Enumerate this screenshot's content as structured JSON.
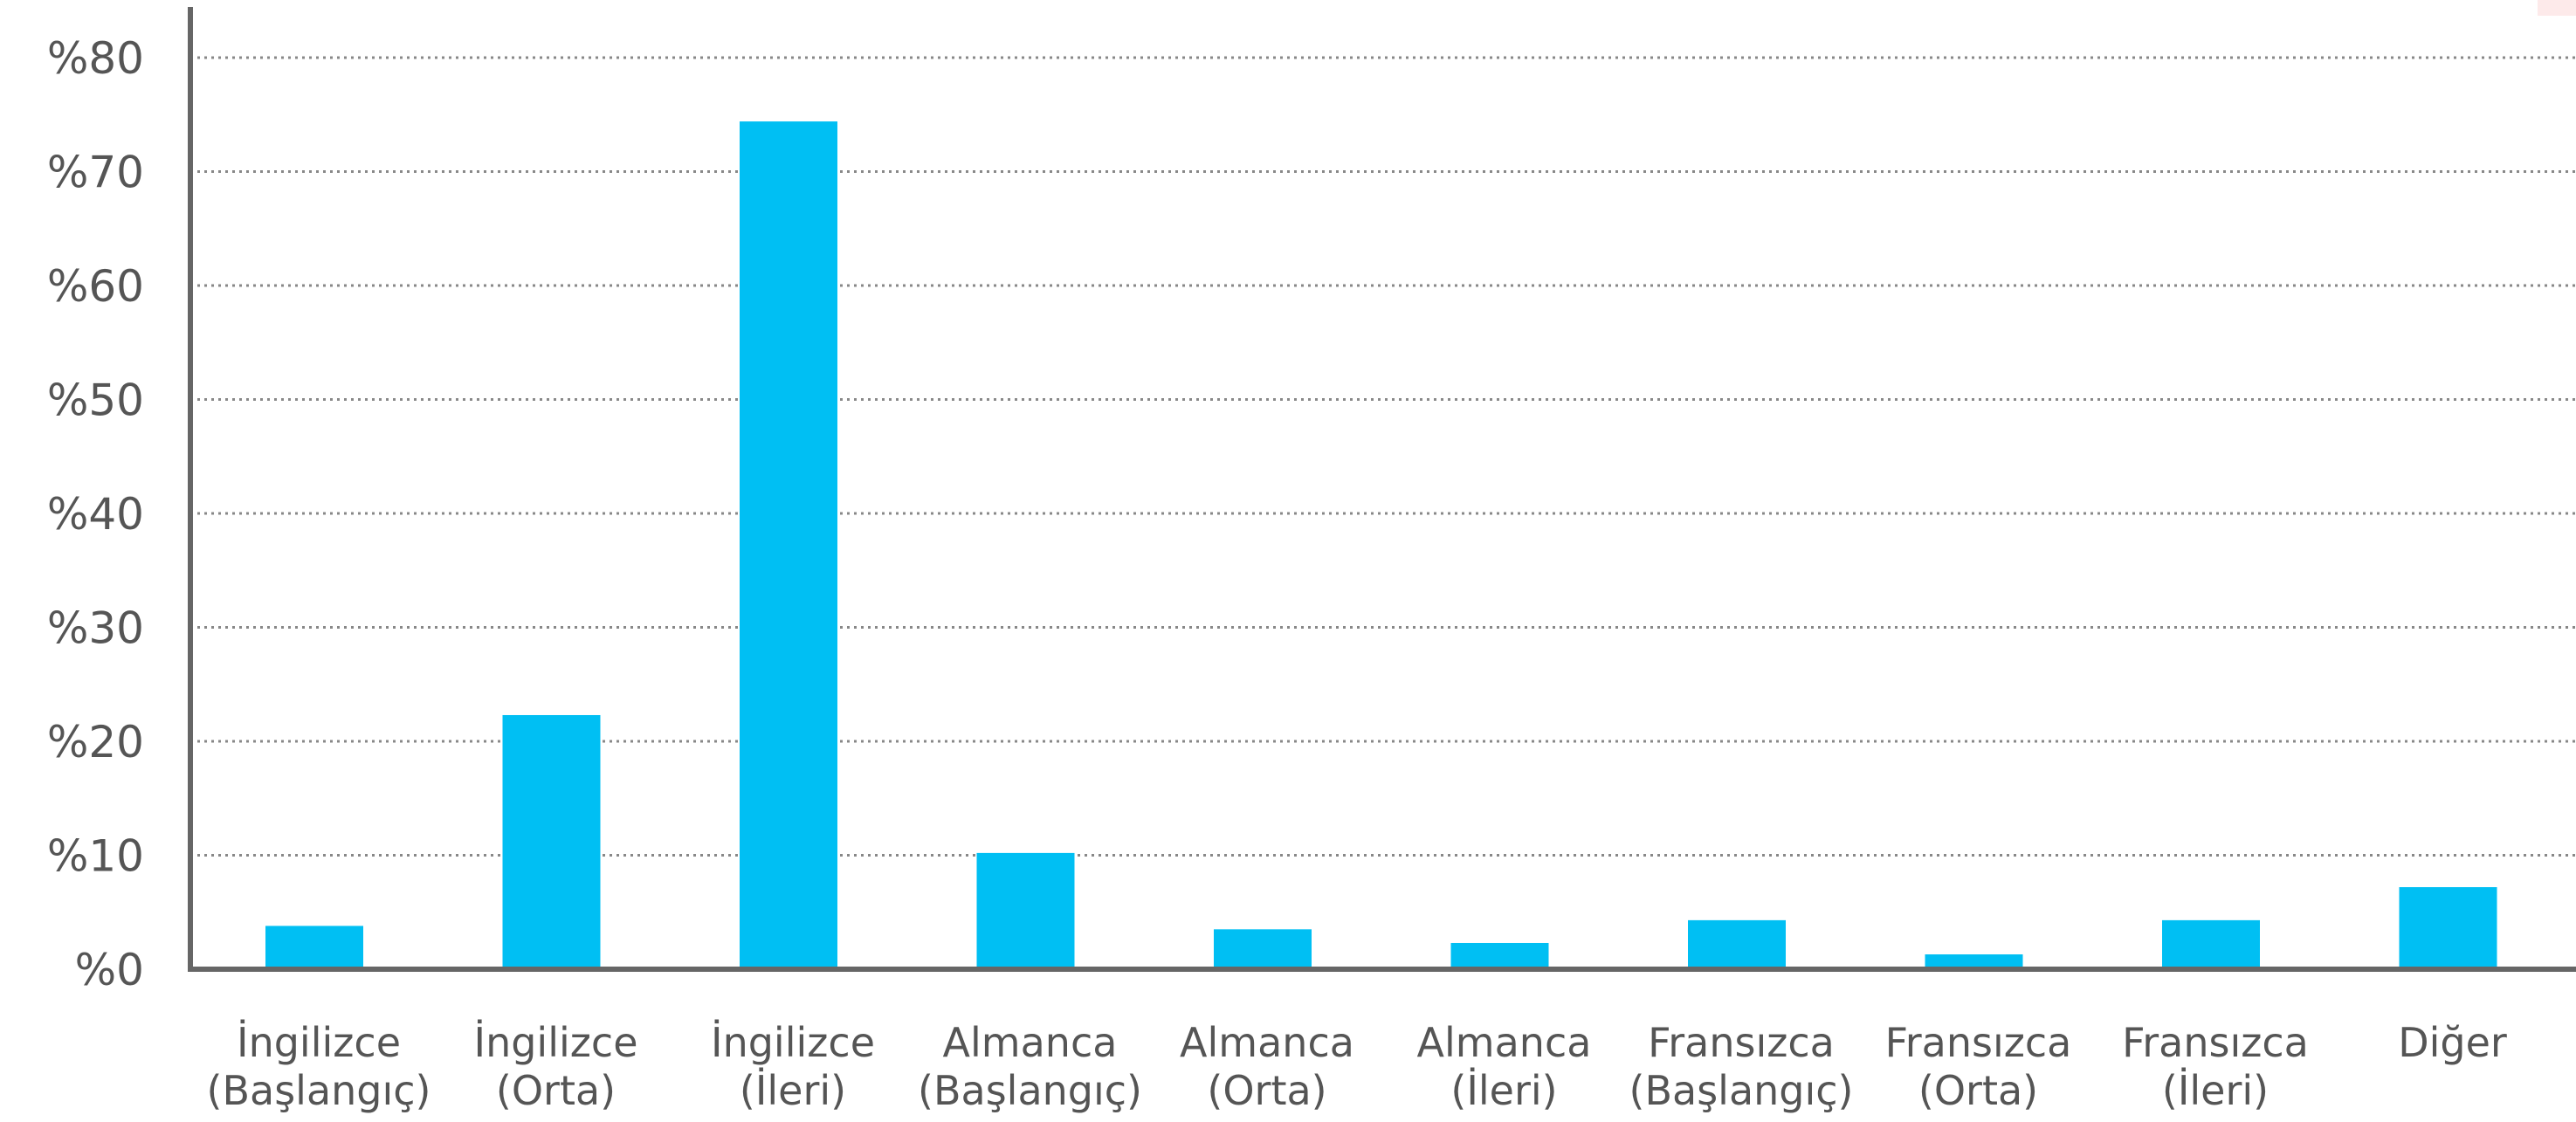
{
  "chart_data": {
    "type": "bar",
    "categories": [
      [
        "İngilizce",
        "(Başlangıç)"
      ],
      [
        "İngilizce",
        "(Orta)"
      ],
      [
        "İngilizce",
        "(İleri)"
      ],
      [
        "Almanca",
        "(Başlangıç)"
      ],
      [
        "Almanca",
        "(Orta)"
      ],
      [
        "Almanca",
        "(İleri)"
      ],
      [
        "Fransızca",
        "(Başlangıç)"
      ],
      [
        "Fransızca",
        "(Orta)"
      ],
      [
        "Fransızca",
        "(İleri)"
      ],
      [
        "Diğer",
        ""
      ]
    ],
    "values": [
      3.8,
      22.3,
      74.4,
      10.2,
      3.5,
      2.3,
      4.3,
      1.3,
      4.3,
      7.2
    ],
    "yticks": [
      "%0",
      "%10",
      "%20",
      "%30",
      "%40",
      "%50",
      "%60",
      "%70",
      "%80"
    ],
    "ylim": [
      0,
      80
    ],
    "title": "",
    "xlabel": "",
    "ylabel": "",
    "grid": "horizontal-dotted",
    "colors": {
      "bar": "#00bff3",
      "axis": "#666666",
      "grid": "#888888",
      "text": "#555555"
    }
  }
}
